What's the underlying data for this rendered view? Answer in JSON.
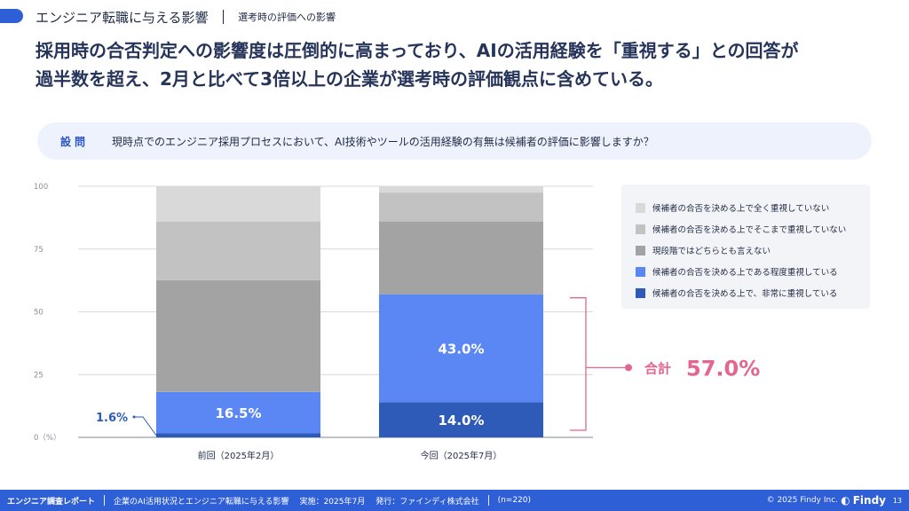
{
  "header": {
    "title": "エンジニア転職に与える影響",
    "subtitle": "選考時の評価への影響"
  },
  "headline": {
    "line1": "採用時の合否判定への影響度は圧倒的に高まっており、AIの活用経験を「重視する」との回答が",
    "line2": "過半数を超え、2月と比べて3倍以上の企業が選考時の評価観点に含めている。"
  },
  "question": {
    "label": "設問",
    "text": "現時点でのエンジニア採用プロセスにおいて、AI技術やツールの活用経験の有無は候補者の評価に影響しますか？"
  },
  "chart_data": {
    "type": "bar",
    "stacked": true,
    "categories": [
      "前回（2025年2月）",
      "今回（2025年7月）"
    ],
    "ylim": [
      0,
      100
    ],
    "yticks": [
      0,
      25,
      50,
      75,
      100
    ],
    "ytick_labels": [
      "0（%）",
      "25",
      "50",
      "75",
      "100"
    ],
    "series": [
      {
        "name": "候補者の合否を決める上で、非常に重視している",
        "color": "#2d5bb7",
        "values": [
          1.6,
          14.0
        ],
        "labels": [
          "1.6%",
          "14.0%"
        ]
      },
      {
        "name": "候補者の合否を決める上である程度重視している",
        "color": "#5b87f4",
        "values": [
          16.5,
          43.0
        ],
        "labels": [
          "16.5%",
          "43.0%"
        ]
      },
      {
        "name": "現段階ではどちらとも言えない",
        "color": "#a3a3a3",
        "values": [
          44.5,
          29.0
        ],
        "labels": [
          "",
          ""
        ]
      },
      {
        "name": "候補者の合否を決める上でそこまで重視していない",
        "color": "#c2c2c2",
        "values": [
          23.4,
          11.5
        ],
        "labels": [
          "",
          ""
        ]
      },
      {
        "name": "候補者の合否を決める上で全く重視していない",
        "color": "#d9d9d9",
        "values": [
          14.0,
          2.5
        ],
        "labels": [
          "",
          ""
        ]
      }
    ],
    "annotation": {
      "label": "合計",
      "value": "57.0%",
      "color": "#e2668e"
    }
  },
  "footer": {
    "report_title": "エンジニア調査レポート",
    "report_name": "企業のAI活用状況とエンジニア転職に与える影響",
    "date": "実施：2025年7月",
    "publisher": "発行：ファインディ株式会社",
    "sample": "(n=220)",
    "copyright": "© 2025 Findy Inc.",
    "logo": "Findy",
    "page": "13"
  }
}
